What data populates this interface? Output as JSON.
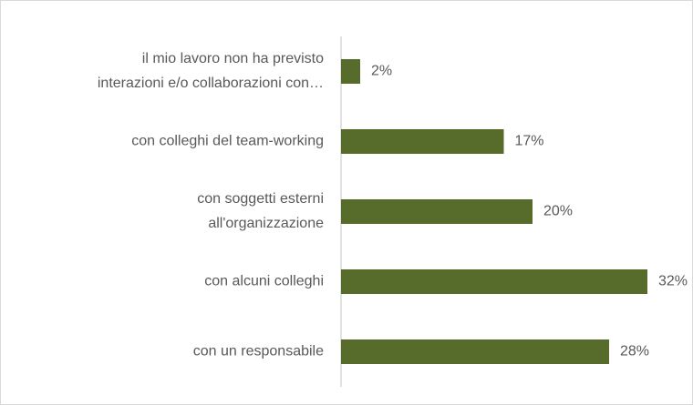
{
  "chart_data": {
    "type": "bar",
    "orientation": "horizontal",
    "categories": [
      [
        "il mio lavoro non ha previsto",
        "interazioni e/o collaborazioni con…"
      ],
      [
        "con colleghi del team-working"
      ],
      [
        "con soggetti esterni",
        "all'organizzazione"
      ],
      [
        "con alcuni colleghi"
      ],
      [
        "con un responsabile"
      ]
    ],
    "values": [
      2,
      17,
      20,
      32,
      28
    ],
    "value_labels": [
      "2%",
      "17%",
      "20%",
      "32%",
      "28%"
    ],
    "color": "#576b2b",
    "xlim": [
      0,
      35
    ]
  }
}
